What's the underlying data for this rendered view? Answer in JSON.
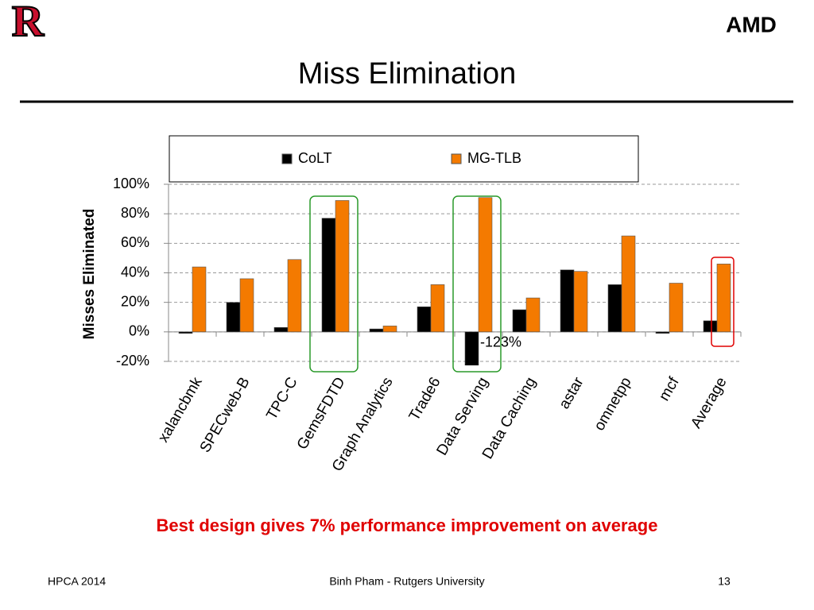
{
  "slide": {
    "title": "Miss Elimination",
    "logo_left": "R",
    "logo_right": "AMD",
    "caption": "Best design gives 7% performance improvement on average",
    "footer_left": "HPCA 2014",
    "footer_center": "Binh Pham - Rutgers University",
    "footer_right": "13"
  },
  "chart_data": {
    "type": "bar",
    "ylabel": "Misses Eliminated",
    "categories": [
      "xalancbmk",
      "SPECweb-B",
      "TPC-C",
      "GemsFDTD",
      "Graph Analytics",
      "Trade6",
      "Data Serving",
      "Data Caching",
      "astar",
      "omnetpp",
      "mcf",
      "Average"
    ],
    "series": [
      {
        "name": "CoLT",
        "color": "#000000",
        "values": [
          -1,
          20,
          3,
          77,
          2,
          17,
          -123,
          15,
          42,
          32,
          -1,
          7.5
        ],
        "value_labels": [
          null,
          null,
          null,
          null,
          null,
          null,
          "-123%",
          null,
          null,
          null,
          null,
          null
        ]
      },
      {
        "name": "MG-TLB",
        "color": "#f47a00",
        "values": [
          44,
          36,
          49,
          89,
          4,
          32,
          91,
          23,
          41,
          65,
          33,
          46
        ]
      }
    ],
    "ylim": [
      -20,
      100
    ],
    "yticks": [
      {
        "value": -20,
        "label": "-20%"
      },
      {
        "value": 0,
        "label": "0%"
      },
      {
        "value": 20,
        "label": "20%"
      },
      {
        "value": 40,
        "label": "40%"
      },
      {
        "value": 60,
        "label": "60%"
      },
      {
        "value": 80,
        "label": "80%"
      },
      {
        "value": 100,
        "label": "100%"
      }
    ],
    "grid": true,
    "legend": "top"
  }
}
